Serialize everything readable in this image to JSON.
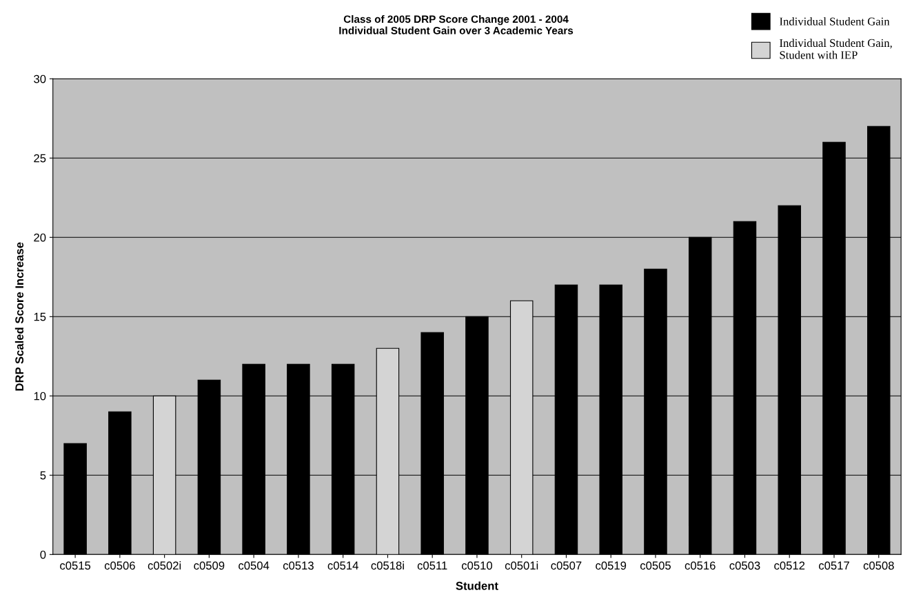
{
  "chart_data": {
    "type": "bar",
    "title": "Class of 2005 DRP Score Change 2001 - 2004\nIndividual Student Gain over 3 Academic Years",
    "xlabel": "Student",
    "ylabel": "DRP Scaled Score Increase",
    "categories": [
      "c0515",
      "c0506",
      "c0502i",
      "c0509",
      "c0504",
      "c0513",
      "c0514",
      "c0518i",
      "c0511",
      "c0510",
      "c0501i",
      "c0507",
      "c0519",
      "c0505",
      "c0516",
      "c0503",
      "c0512",
      "c0517",
      "c0508"
    ],
    "series": [
      {
        "name": "Individual Student Gain",
        "color": "#000000",
        "values": [
          7,
          9,
          null,
          11,
          12,
          12,
          12,
          null,
          14,
          15,
          null,
          17,
          17,
          18,
          20,
          21,
          22,
          26,
          27
        ]
      },
      {
        "name": "Individual Student Gain,\nStudent with IEP",
        "color": "#d4d4d4",
        "values": [
          null,
          null,
          10,
          null,
          null,
          null,
          null,
          13,
          null,
          null,
          16,
          null,
          null,
          null,
          null,
          null,
          null,
          null,
          null
        ]
      }
    ],
    "ylim": [
      0,
      30
    ],
    "yticks": [
      0,
      5,
      10,
      15,
      20,
      25,
      30
    ],
    "grid": "y",
    "legend": "top right"
  }
}
